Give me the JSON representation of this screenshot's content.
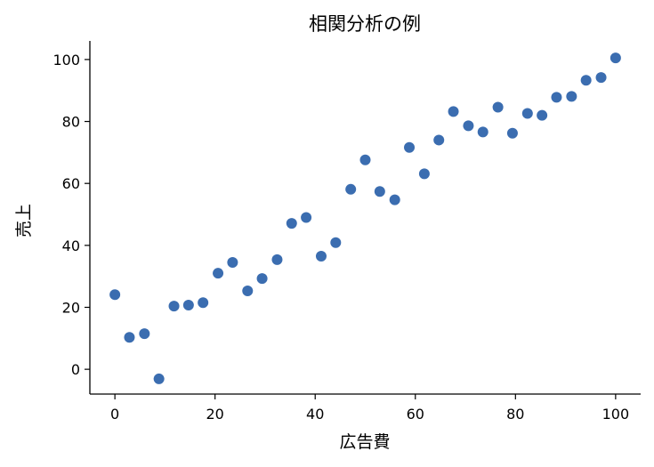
{
  "chart_data": {
    "type": "scatter",
    "title": "相関分析の例",
    "xlabel": "広告費",
    "ylabel": "売上",
    "xlim": [
      -5,
      105
    ],
    "ylim": [
      -8,
      106
    ],
    "xticks": [
      0,
      20,
      40,
      60,
      80,
      100
    ],
    "yticks": [
      0,
      20,
      40,
      60,
      80,
      100
    ],
    "grid": false,
    "point_color": "#3b6db0",
    "points": [
      {
        "x": 0.0,
        "y": 24.1
      },
      {
        "x": 2.9,
        "y": 10.3
      },
      {
        "x": 5.9,
        "y": 11.5
      },
      {
        "x": 8.8,
        "y": -3.1
      },
      {
        "x": 11.8,
        "y": 20.4
      },
      {
        "x": 14.7,
        "y": 20.7
      },
      {
        "x": 17.6,
        "y": 21.5
      },
      {
        "x": 20.6,
        "y": 31.0
      },
      {
        "x": 23.5,
        "y": 34.5
      },
      {
        "x": 26.5,
        "y": 25.3
      },
      {
        "x": 29.4,
        "y": 29.3
      },
      {
        "x": 32.4,
        "y": 35.4
      },
      {
        "x": 35.3,
        "y": 47.1
      },
      {
        "x": 38.2,
        "y": 49.0
      },
      {
        "x": 41.2,
        "y": 36.5
      },
      {
        "x": 44.1,
        "y": 40.9
      },
      {
        "x": 47.1,
        "y": 58.1
      },
      {
        "x": 50.0,
        "y": 67.6
      },
      {
        "x": 52.9,
        "y": 57.4
      },
      {
        "x": 55.9,
        "y": 54.7
      },
      {
        "x": 58.8,
        "y": 71.6
      },
      {
        "x": 61.8,
        "y": 63.1
      },
      {
        "x": 64.7,
        "y": 74.0
      },
      {
        "x": 67.6,
        "y": 83.2
      },
      {
        "x": 70.6,
        "y": 78.6
      },
      {
        "x": 73.5,
        "y": 76.6
      },
      {
        "x": 76.5,
        "y": 84.6
      },
      {
        "x": 79.4,
        "y": 76.2
      },
      {
        "x": 82.4,
        "y": 82.6
      },
      {
        "x": 85.3,
        "y": 82.0
      },
      {
        "x": 88.2,
        "y": 87.8
      },
      {
        "x": 91.2,
        "y": 88.1
      },
      {
        "x": 94.1,
        "y": 93.3
      },
      {
        "x": 97.1,
        "y": 94.2
      },
      {
        "x": 100.0,
        "y": 100.5
      }
    ]
  }
}
